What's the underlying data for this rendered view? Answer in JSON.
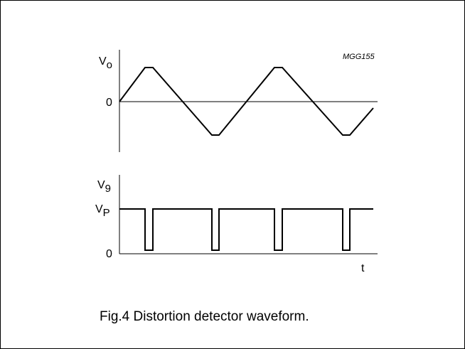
{
  "figure": {
    "code": "MGG155",
    "caption": "Fig.4  Distortion detector waveform."
  },
  "top_plot": {
    "y_label_main": "V",
    "y_label_sub": "o",
    "zero_label": "0",
    "signal": "triangle-clipped"
  },
  "bottom_plot": {
    "y_label_main": "V",
    "y_label_sub": "9",
    "level_label_main": "V",
    "level_label_sub": "P",
    "zero_label": "0",
    "x_label": "t",
    "signal": "pulse-train"
  },
  "colors": {
    "line": "#000000",
    "background": "#ffffff"
  }
}
